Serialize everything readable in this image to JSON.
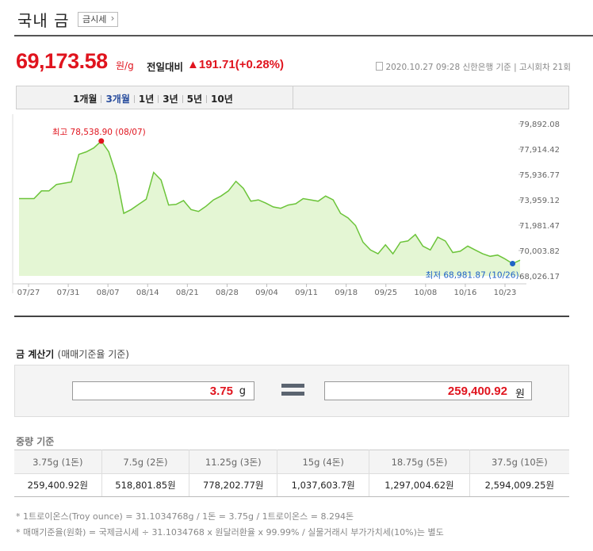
{
  "header": {
    "title": "국내 금",
    "badge": "금시세"
  },
  "price": {
    "value": "69,173.58",
    "unit": "원/g",
    "change_label": "전일대비",
    "change_value": "▲191.71(+0.28%)",
    "info": "2020.10.27 09:28 신한은행 기준 | 고시회차 21회"
  },
  "tabs": [
    "1개월",
    "3개월",
    "1년",
    "3년",
    "5년",
    "10년"
  ],
  "active_tab": "3개월",
  "chart_data": {
    "type": "area",
    "x_labels": [
      "07/27",
      "07/31",
      "08/07",
      "08/14",
      "08/21",
      "08/28",
      "09/04",
      "09/11",
      "09/18",
      "09/25",
      "10/08",
      "10/16",
      "10/23"
    ],
    "y_ticks": [
      "79,892.08",
      "77,914.42",
      "75,936.77",
      "73,959.12",
      "71,981.47",
      "70,003.82",
      "68,026.17"
    ],
    "ylim": [
      68026.17,
      79892.08
    ],
    "values": [
      74050,
      74050,
      74050,
      74650,
      74650,
      75150,
      75250,
      75350,
      77500,
      77700,
      78000,
      78538.9,
      77700,
      75900,
      72900,
      73200,
      73600,
      74000,
      76100,
      75500,
      73550,
      73600,
      73900,
      73200,
      73050,
      73450,
      73950,
      74250,
      74650,
      75400,
      74850,
      73850,
      73950,
      73700,
      73400,
      73300,
      73550,
      73650,
      74050,
      73950,
      73850,
      74250,
      73950,
      72900,
      72550,
      71950,
      70650,
      70050,
      69750,
      70450,
      69750,
      70650,
      70750,
      71250,
      70350,
      70050,
      71050,
      70750,
      69850,
      69950,
      70350,
      70050,
      69750,
      69550,
      69650,
      69350,
      68981.87,
      69250
    ],
    "high_label": "최고 78,538.90 (08/07)",
    "low_label": "최저 68,981.87 (10/26)",
    "colors": {
      "line": "#6cc43a",
      "fill": "#e4f6d4",
      "high": "#e0141e",
      "low": "#1f63c6"
    }
  },
  "calculator": {
    "title": "금 계산기",
    "subtitle": "(매매기준율 기준)",
    "input_value": "3.75",
    "input_unit": "g",
    "result_value": "259,400.92",
    "result_unit": "원"
  },
  "weights": {
    "title": "중량 기준",
    "headers": [
      "3.75g (1돈)",
      "7.5g (2돈)",
      "11.25g (3돈)",
      "15g (4돈)",
      "18.75g (5돈)",
      "37.5g (10돈)"
    ],
    "values": [
      "259,400.92원",
      "518,801.85원",
      "778,202.77원",
      "1,037,603.7원",
      "1,297,004.62원",
      "2,594,009.25원"
    ]
  },
  "notes": [
    "* 1트로이온스(Troy ounce) = 31.1034768g / 1돈 = 3.75g / 1트로이온스 = 8.294돈",
    "* 매매기준율(원화) = 국제금시세 ÷ 31.1034768 x 원달러환율 x 99.99% / 실물거래시 부가가치세(10%)는 별도"
  ]
}
